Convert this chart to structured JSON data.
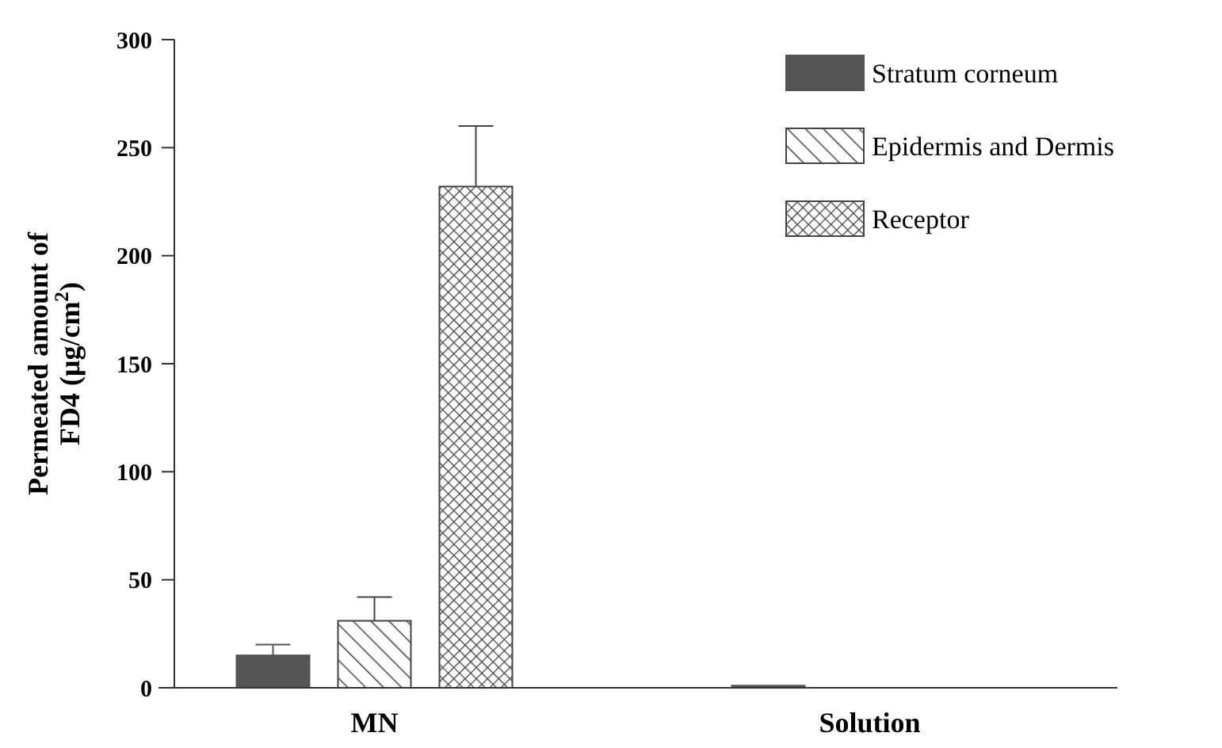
{
  "chart_data": {
    "type": "bar",
    "ylabel": "Permeated amount of\nFD4 (μg/cm$^{2}$)",
    "categories": [
      "MN",
      "Solution"
    ],
    "series": [
      {
        "name": "Stratum corneum",
        "color": "#555555",
        "values": [
          15,
          1
        ],
        "errors": [
          5,
          null
        ]
      },
      {
        "name": "Epidermis and Dermis",
        "color": "#444444",
        "values": [
          31,
          0
        ],
        "errors": [
          11,
          0
        ]
      },
      {
        "name": "Receptor",
        "color": "#444444",
        "values": [
          232,
          0
        ],
        "errors": [
          28,
          0
        ]
      }
    ],
    "ylim": [
      0,
      300
    ],
    "yticks": [
      0,
      50,
      100,
      150,
      200,
      250,
      300
    ],
    "legend": "top right"
  }
}
